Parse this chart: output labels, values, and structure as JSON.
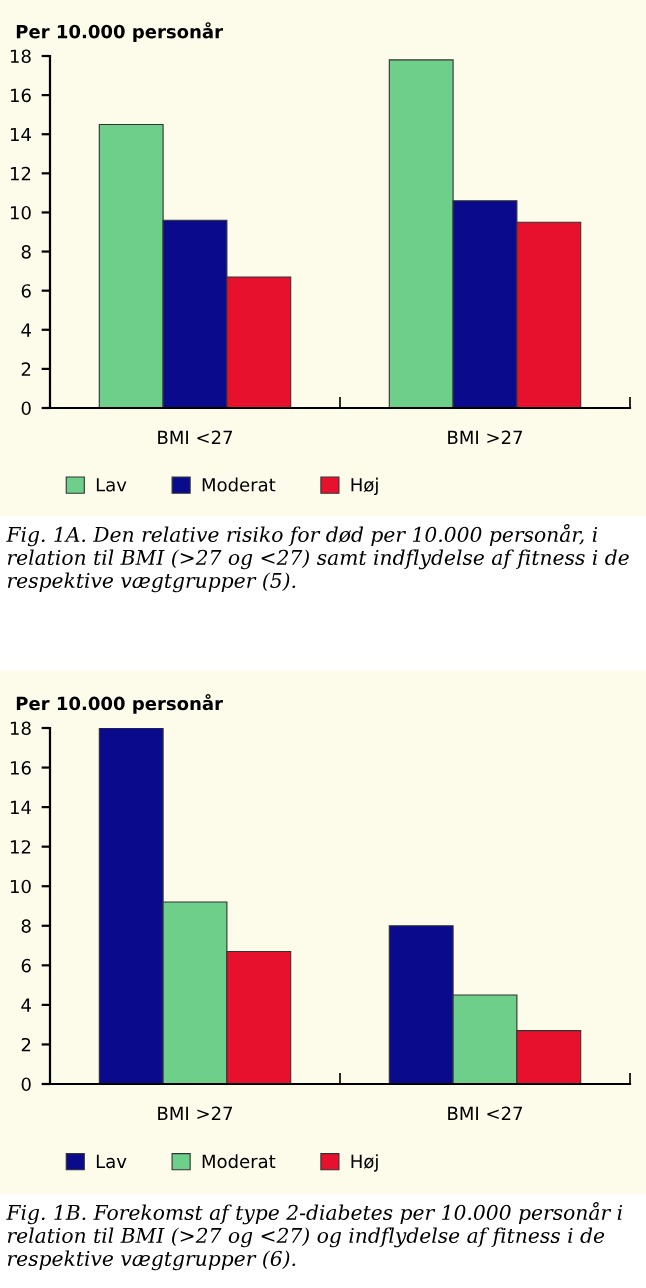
{
  "chart_data": [
    {
      "type": "bar",
      "ylabel": "Per 10.000 personår",
      "categories": [
        "BMI <27",
        "BMI >27"
      ],
      "series": [
        {
          "name": "Lav",
          "color": "#6dcf8a",
          "values": [
            14.5,
            17.8
          ]
        },
        {
          "name": "Moderat",
          "color": "#0a0a8c",
          "values": [
            9.6,
            10.6
          ]
        },
        {
          "name": "Høj",
          "color": "#e8112d",
          "values": [
            6.7,
            9.5
          ]
        }
      ],
      "ylim": [
        0,
        18
      ],
      "yticks": [
        0,
        2,
        4,
        6,
        8,
        10,
        12,
        14,
        16,
        18
      ],
      "grid": false,
      "legend": "bottom",
      "annotations": [
        "Fig. 1A. Den relative risiko for død per 10.000 personår, i relation til BMI (>27 og <27) samt indflydelse af fitness i de respektive vægtgrupper (5)."
      ]
    },
    {
      "type": "bar",
      "ylabel": "Per 10.000 personår",
      "categories": [
        "BMI >27",
        "BMI <27"
      ],
      "series": [
        {
          "name": "Lav",
          "color": "#0a0a8c",
          "values": [
            18.0,
            8.0
          ]
        },
        {
          "name": "Moderat",
          "color": "#6dcf8a",
          "values": [
            9.2,
            4.5
          ]
        },
        {
          "name": "Høj",
          "color": "#e8112d",
          "values": [
            6.7,
            2.7
          ]
        }
      ],
      "ylim": [
        0,
        18
      ],
      "yticks": [
        0,
        2,
        4,
        6,
        8,
        10,
        12,
        14,
        16,
        18
      ],
      "grid": false,
      "legend": "bottom",
      "annotations": [
        "Fig. 1B. Forekomst af type 2-diabetes per 10.000 personår i relation til BMI (>27 og <27) og indflydelse af fitness i de respektive vægtgrupper (6)."
      ]
    }
  ]
}
